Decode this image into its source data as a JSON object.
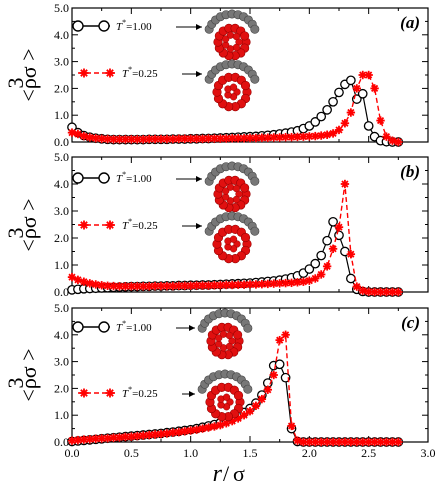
{
  "colors": {
    "black_series": "#000000",
    "red_series": "#ff0000",
    "bead_red": "#e01010",
    "bead_gray": "#777777"
  },
  "xlabel_r": "r",
  "xlabel_slash": "/",
  "xlabel_sigma": "σ",
  "ylabel": "<ρσ  >",
  "ylabel_exp": "3",
  "chart_data": [
    {
      "type": "line",
      "panel_label": "(a)",
      "xlim": [
        0.0,
        3.0
      ],
      "ylim": [
        0.0,
        5.0
      ],
      "x_ticks": [
        "0.0",
        "0.5",
        "1.0",
        "1.5",
        "2.0",
        "2.5",
        "3.0"
      ],
      "y_ticks": [
        "0.0",
        "1.0",
        "2.0",
        "3.0",
        "4.0",
        "5.0"
      ],
      "series": [
        {
          "name": "T*=1.00",
          "legend_main": "T",
          "legend_sup": "*",
          "legend_val": "=1.00",
          "marker": "open-circle",
          "color": "#000000",
          "x": [
            0.0,
            0.05,
            0.1,
            0.15,
            0.2,
            0.25,
            0.3,
            0.35,
            0.4,
            0.45,
            0.5,
            0.55,
            0.6,
            0.65,
            0.7,
            0.75,
            0.8,
            0.85,
            0.9,
            0.95,
            1.0,
            1.05,
            1.1,
            1.15,
            1.2,
            1.25,
            1.3,
            1.35,
            1.4,
            1.45,
            1.5,
            1.55,
            1.6,
            1.65,
            1.7,
            1.75,
            1.8,
            1.85,
            1.9,
            1.95,
            2.0,
            2.05,
            2.1,
            2.15,
            2.2,
            2.25,
            2.3,
            2.35,
            2.4,
            2.45,
            2.5,
            2.55,
            2.6,
            2.65,
            2.7,
            2.75
          ],
          "y": [
            0.55,
            0.35,
            0.24,
            0.18,
            0.14,
            0.12,
            0.1,
            0.09,
            0.09,
            0.09,
            0.09,
            0.09,
            0.09,
            0.1,
            0.1,
            0.1,
            0.1,
            0.11,
            0.11,
            0.11,
            0.12,
            0.12,
            0.13,
            0.13,
            0.14,
            0.15,
            0.16,
            0.17,
            0.18,
            0.19,
            0.2,
            0.21,
            0.23,
            0.25,
            0.27,
            0.3,
            0.33,
            0.37,
            0.42,
            0.5,
            0.6,
            0.75,
            0.95,
            1.2,
            1.5,
            1.85,
            2.15,
            2.3,
            1.6,
            1.8,
            0.6,
            0.2,
            0.05,
            0.01,
            0.0,
            0.0
          ]
        },
        {
          "name": "T*=0.25",
          "legend_main": "T",
          "legend_sup": "*",
          "legend_val": "=0.25",
          "marker": "star",
          "color": "#ff0000",
          "x": [
            0.0,
            0.05,
            0.1,
            0.15,
            0.2,
            0.25,
            0.3,
            0.35,
            0.4,
            0.45,
            0.5,
            0.55,
            0.6,
            0.65,
            0.7,
            0.75,
            0.8,
            0.85,
            0.9,
            0.95,
            1.0,
            1.05,
            1.1,
            1.15,
            1.2,
            1.25,
            1.3,
            1.35,
            1.4,
            1.45,
            1.5,
            1.55,
            1.6,
            1.65,
            1.7,
            1.75,
            1.8,
            1.85,
            1.9,
            1.95,
            2.0,
            2.05,
            2.1,
            2.15,
            2.2,
            2.25,
            2.3,
            2.35,
            2.4,
            2.45,
            2.5,
            2.55,
            2.6,
            2.65,
            2.7,
            2.75
          ],
          "y": [
            0.35,
            0.3,
            0.22,
            0.17,
            0.14,
            0.12,
            0.11,
            0.1,
            0.1,
            0.1,
            0.1,
            0.1,
            0.1,
            0.11,
            0.11,
            0.11,
            0.11,
            0.11,
            0.12,
            0.12,
            0.12,
            0.12,
            0.12,
            0.13,
            0.13,
            0.13,
            0.13,
            0.14,
            0.14,
            0.14,
            0.15,
            0.15,
            0.16,
            0.16,
            0.17,
            0.17,
            0.18,
            0.18,
            0.19,
            0.2,
            0.21,
            0.22,
            0.24,
            0.27,
            0.32,
            0.45,
            0.7,
            1.1,
            2.0,
            2.5,
            2.5,
            2.0,
            0.8,
            0.2,
            0.05,
            0.0
          ]
        }
      ]
    },
    {
      "type": "line",
      "panel_label": "(b)",
      "xlim": [
        0.0,
        3.0
      ],
      "ylim": [
        0.0,
        5.0
      ],
      "x_ticks": [
        "0.0",
        "0.5",
        "1.0",
        "1.5",
        "2.0",
        "2.5",
        "3.0"
      ],
      "y_ticks": [
        "0.0",
        "1.0",
        "2.0",
        "3.0",
        "4.0",
        "5.0"
      ],
      "series": [
        {
          "name": "T*=1.00",
          "legend_main": "T",
          "legend_sup": "*",
          "legend_val": "=1.00",
          "marker": "open-circle",
          "color": "#000000",
          "x": [
            0.0,
            0.05,
            0.1,
            0.15,
            0.2,
            0.25,
            0.3,
            0.35,
            0.4,
            0.45,
            0.5,
            0.55,
            0.6,
            0.65,
            0.7,
            0.75,
            0.8,
            0.85,
            0.9,
            0.95,
            1.0,
            1.05,
            1.1,
            1.15,
            1.2,
            1.25,
            1.3,
            1.35,
            1.4,
            1.45,
            1.5,
            1.55,
            1.6,
            1.65,
            1.7,
            1.75,
            1.8,
            1.85,
            1.9,
            1.95,
            2.0,
            2.05,
            2.1,
            2.15,
            2.2,
            2.25,
            2.3,
            2.35,
            2.4,
            2.45,
            2.5,
            2.55,
            2.6,
            2.65,
            2.7,
            2.75
          ],
          "y": [
            0.08,
            0.1,
            0.12,
            0.13,
            0.14,
            0.15,
            0.16,
            0.17,
            0.18,
            0.19,
            0.2,
            0.2,
            0.21,
            0.21,
            0.22,
            0.22,
            0.23,
            0.23,
            0.24,
            0.24,
            0.25,
            0.25,
            0.26,
            0.26,
            0.27,
            0.28,
            0.29,
            0.3,
            0.31,
            0.32,
            0.33,
            0.35,
            0.37,
            0.39,
            0.41,
            0.44,
            0.48,
            0.53,
            0.6,
            0.7,
            0.85,
            1.05,
            1.35,
            1.9,
            2.6,
            2.1,
            1.5,
            0.5,
            0.1,
            0.02,
            0.0,
            0.0,
            0.0,
            0.0,
            0.0,
            0.0
          ]
        },
        {
          "name": "T*=0.25",
          "legend_main": "T",
          "legend_sup": "*",
          "legend_val": "=0.25",
          "marker": "star",
          "color": "#ff0000",
          "x": [
            0.0,
            0.05,
            0.1,
            0.15,
            0.2,
            0.25,
            0.3,
            0.35,
            0.4,
            0.45,
            0.5,
            0.55,
            0.6,
            0.65,
            0.7,
            0.75,
            0.8,
            0.85,
            0.9,
            0.95,
            1.0,
            1.05,
            1.1,
            1.15,
            1.2,
            1.25,
            1.3,
            1.35,
            1.4,
            1.45,
            1.5,
            1.55,
            1.6,
            1.65,
            1.7,
            1.75,
            1.8,
            1.85,
            1.9,
            1.95,
            2.0,
            2.05,
            2.1,
            2.15,
            2.2,
            2.25,
            2.3,
            2.35,
            2.4,
            2.45,
            2.5,
            2.55,
            2.6,
            2.65,
            2.7,
            2.75
          ],
          "y": [
            0.55,
            0.45,
            0.38,
            0.32,
            0.28,
            0.25,
            0.23,
            0.22,
            0.21,
            0.21,
            0.21,
            0.21,
            0.21,
            0.21,
            0.22,
            0.22,
            0.22,
            0.22,
            0.23,
            0.23,
            0.23,
            0.24,
            0.24,
            0.24,
            0.25,
            0.25,
            0.26,
            0.26,
            0.27,
            0.27,
            0.28,
            0.28,
            0.29,
            0.3,
            0.31,
            0.32,
            0.33,
            0.34,
            0.36,
            0.38,
            0.42,
            0.5,
            0.65,
            0.95,
            1.6,
            2.4,
            4.0,
            1.4,
            0.2,
            0.05,
            0.01,
            0.0,
            0.0,
            0.0,
            0.0,
            0.0
          ]
        }
      ]
    },
    {
      "type": "line",
      "panel_label": "(c)",
      "xlim": [
        0.0,
        3.0
      ],
      "ylim": [
        0.0,
        5.0
      ],
      "x_ticks": [
        "0.0",
        "0.5",
        "1.0",
        "1.5",
        "2.0",
        "2.5",
        "3.0"
      ],
      "y_ticks": [
        "0.0",
        "1.0",
        "2.0",
        "3.0",
        "4.0",
        "5.0"
      ],
      "series": [
        {
          "name": "T*=1.00",
          "legend_main": "T",
          "legend_sup": "*",
          "legend_val": "=1.00",
          "marker": "open-circle",
          "color": "#000000",
          "x": [
            0.0,
            0.05,
            0.1,
            0.15,
            0.2,
            0.25,
            0.3,
            0.35,
            0.4,
            0.45,
            0.5,
            0.55,
            0.6,
            0.65,
            0.7,
            0.75,
            0.8,
            0.85,
            0.9,
            0.95,
            1.0,
            1.05,
            1.1,
            1.15,
            1.2,
            1.25,
            1.3,
            1.35,
            1.4,
            1.45,
            1.5,
            1.55,
            1.6,
            1.65,
            1.7,
            1.75,
            1.8,
            1.85,
            1.9,
            1.95,
            2.0,
            2.05,
            2.1,
            2.15,
            2.2,
            2.25,
            2.3,
            2.35,
            2.4,
            2.45,
            2.5,
            2.55,
            2.6,
            2.65,
            2.7,
            2.75
          ],
          "y": [
            0.02,
            0.04,
            0.06,
            0.08,
            0.1,
            0.12,
            0.14,
            0.16,
            0.18,
            0.2,
            0.22,
            0.24,
            0.26,
            0.28,
            0.3,
            0.32,
            0.35,
            0.37,
            0.4,
            0.43,
            0.46,
            0.5,
            0.55,
            0.6,
            0.65,
            0.72,
            0.8,
            0.88,
            0.98,
            1.1,
            1.25,
            1.45,
            1.75,
            2.2,
            2.85,
            2.9,
            2.4,
            0.5,
            0.02,
            0.0,
            0.0,
            0.0,
            0.0,
            0.0,
            0.0,
            0.0,
            0.0,
            0.0,
            0.0,
            0.0,
            0.0,
            0.0,
            0.0,
            0.0,
            0.0,
            0.0
          ]
        },
        {
          "name": "T*=0.25",
          "legend_main": "T",
          "legend_sup": "*",
          "legend_val": "=0.25",
          "marker": "star",
          "color": "#ff0000",
          "x": [
            0.0,
            0.05,
            0.1,
            0.15,
            0.2,
            0.25,
            0.3,
            0.35,
            0.4,
            0.45,
            0.5,
            0.55,
            0.6,
            0.65,
            0.7,
            0.75,
            0.8,
            0.85,
            0.9,
            0.95,
            1.0,
            1.05,
            1.1,
            1.15,
            1.2,
            1.25,
            1.3,
            1.35,
            1.4,
            1.45,
            1.5,
            1.55,
            1.6,
            1.65,
            1.7,
            1.75,
            1.8,
            1.85,
            1.9,
            1.95,
            2.0,
            2.05,
            2.1,
            2.15,
            2.2,
            2.25,
            2.3,
            2.35,
            2.4,
            2.45,
            2.5,
            2.55,
            2.6,
            2.65,
            2.7,
            2.75
          ],
          "y": [
            0.05,
            0.07,
            0.09,
            0.1,
            0.12,
            0.13,
            0.14,
            0.16,
            0.17,
            0.19,
            0.2,
            0.22,
            0.24,
            0.26,
            0.28,
            0.3,
            0.32,
            0.35,
            0.37,
            0.4,
            0.43,
            0.46,
            0.5,
            0.54,
            0.58,
            0.63,
            0.7,
            0.78,
            0.88,
            1.0,
            1.15,
            1.35,
            1.6,
            1.95,
            2.5,
            3.8,
            4.0,
            0.6,
            0.05,
            0.0,
            0.0,
            0.0,
            0.0,
            0.0,
            0.0,
            0.0,
            0.0,
            0.0,
            0.0,
            0.0,
            0.0,
            0.0,
            0.0,
            0.0,
            0.0,
            0.0
          ]
        }
      ]
    }
  ]
}
